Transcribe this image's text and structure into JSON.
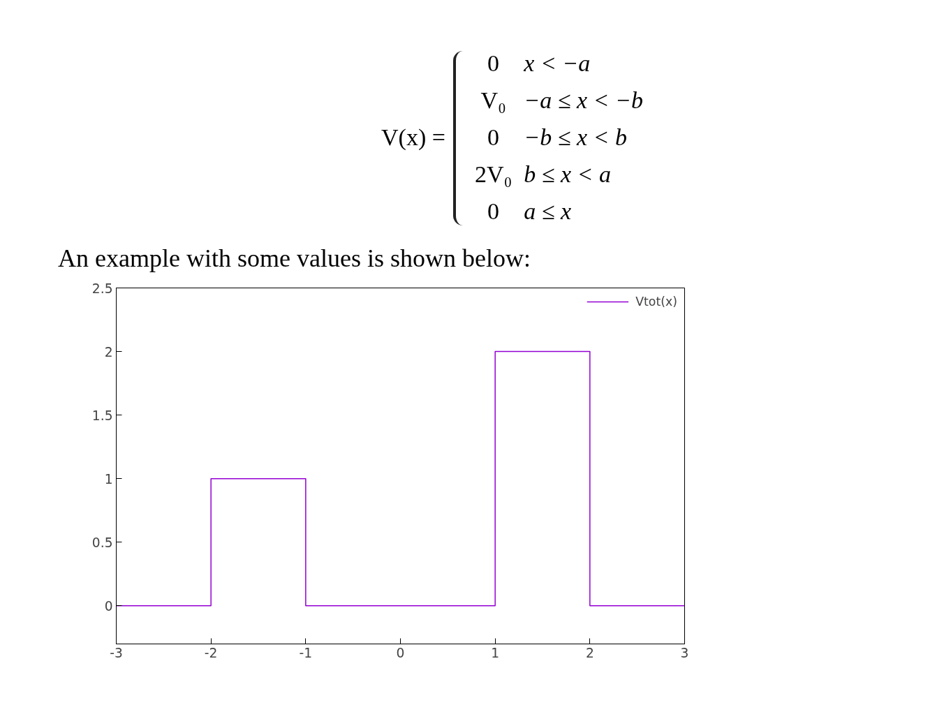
{
  "chart_data": {
    "type": "line",
    "annotations": [
      "V(x) =",
      "0",
      "x < −a",
      "V₀",
      "−a ≤ x < −b",
      "0",
      "−b ≤ x < b",
      "2V₀",
      "b ≤ x < a",
      "0",
      "a ≤ x",
      "An example with some values is shown below:"
    ],
    "series": [
      {
        "name": "Vtot(x)",
        "color": "#9400d3",
        "x": [
          -3,
          -2,
          -2,
          -1,
          -1,
          1,
          1,
          2,
          2,
          3
        ],
        "values": [
          0,
          0,
          1,
          1,
          0,
          0,
          2,
          2,
          0,
          0
        ]
      }
    ],
    "xlim": [
      -3,
      3
    ],
    "xticks": [
      -3,
      -2,
      -1,
      0,
      1,
      2,
      3
    ],
    "ylim": [
      -0.3,
      2.5
    ],
    "yticks": [
      0,
      0.5,
      1,
      1.5,
      2,
      2.5
    ],
    "grid": false,
    "legend": "top right",
    "marker": "none",
    "line_style": "solid"
  }
}
